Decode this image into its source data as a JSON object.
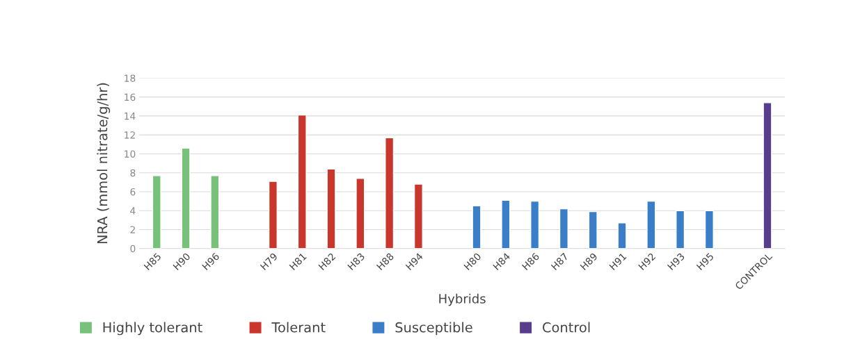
{
  "chart_data": {
    "type": "bar",
    "xlabel": "Hybrids",
    "ylabel": "NRA (mmol nitrate/g/hr)",
    "categories": [
      "H85",
      "H90",
      "H96",
      null,
      "H79",
      "H81",
      "H82",
      "H83",
      "H88",
      "H94",
      null,
      "H80",
      "H84",
      "H86",
      "H87",
      "H89",
      "H91",
      "H92",
      "H93",
      "H95",
      null,
      "CONTROL"
    ],
    "series": [
      {
        "name": "Highly tolerant",
        "color": "#77c17a",
        "values": [
          7.7,
          10.6,
          7.7,
          null,
          null,
          null,
          null,
          null,
          null,
          null,
          null,
          null,
          null,
          null,
          null,
          null,
          null,
          null,
          null,
          null,
          null,
          null
        ]
      },
      {
        "name": "Tolerant",
        "color": "#c8362c",
        "values": [
          null,
          null,
          null,
          null,
          7.1,
          14.1,
          8.4,
          7.4,
          11.7,
          6.8,
          null,
          null,
          null,
          null,
          null,
          null,
          null,
          null,
          null,
          null,
          null,
          null
        ]
      },
      {
        "name": "Susceptible",
        "color": "#3a7ec8",
        "values": [
          null,
          null,
          null,
          null,
          null,
          null,
          null,
          null,
          null,
          null,
          null,
          4.5,
          5.1,
          5.0,
          4.2,
          3.9,
          2.7,
          5.0,
          4.0,
          4.0,
          null,
          null
        ]
      },
      {
        "name": "Control",
        "color": "#583d8c",
        "values": [
          null,
          null,
          null,
          null,
          null,
          null,
          null,
          null,
          null,
          null,
          null,
          null,
          null,
          null,
          null,
          null,
          null,
          null,
          null,
          null,
          null,
          15.4
        ]
      }
    ],
    "ylim": [
      0,
      18
    ],
    "yticks": [
      0,
      2,
      4,
      6,
      8,
      10,
      12,
      14,
      16,
      18
    ],
    "grid": "y",
    "legend": "bottom"
  }
}
